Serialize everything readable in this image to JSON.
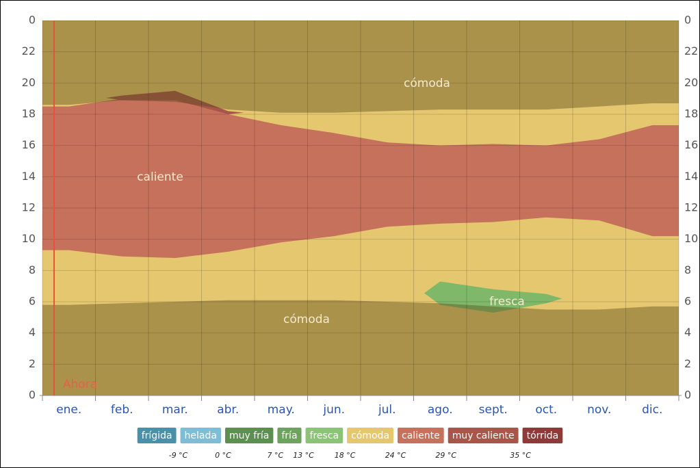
{
  "chart_data": {
    "type": "area",
    "categories": [
      "ene.",
      "feb.",
      "mar.",
      "abr.",
      "may.",
      "jun.",
      "jul.",
      "ago.",
      "sept.",
      "oct.",
      "nov.",
      "dic."
    ],
    "ylim": [
      0,
      24
    ],
    "yticks": [
      0,
      2,
      4,
      6,
      8,
      10,
      12,
      14,
      16,
      18,
      20,
      22,
      {
        "value": 24,
        "label": "0"
      }
    ],
    "background": {
      "name": "cómoda",
      "color": "#e5c76f"
    },
    "series": [
      {
        "name": "caliente",
        "color": "#c6715b",
        "lower": [
          9.3,
          8.9,
          8.8,
          9.2,
          9.8,
          10.2,
          10.8,
          11.0,
          11.1,
          11.4,
          11.2,
          10.2
        ],
        "upper": [
          18.5,
          19.0,
          18.9,
          18.0,
          17.3,
          16.8,
          16.2,
          16.0,
          16.1,
          16.0,
          16.4,
          17.3
        ]
      },
      {
        "name": "muy caliente",
        "color": "#a8564a",
        "lower": [
          null,
          18.9,
          18.9,
          18.0,
          null,
          null,
          null,
          null,
          null,
          null,
          null,
          null
        ],
        "upper": [
          null,
          19.2,
          19.5,
          18.2,
          null,
          null,
          null,
          null,
          null,
          null,
          null,
          null
        ]
      },
      {
        "name": "fresca",
        "color": "#80b86a",
        "lower": [
          null,
          null,
          null,
          null,
          null,
          null,
          null,
          5.8,
          5.3,
          5.9,
          null,
          null
        ],
        "upper": [
          null,
          null,
          null,
          null,
          null,
          null,
          null,
          7.3,
          6.8,
          6.5,
          null,
          null
        ]
      }
    ],
    "shading": [
      {
        "color": "#5a4a1a",
        "lower": [
          18.6,
          18.9,
          18.8,
          18.3,
          18.1,
          18.1,
          18.2,
          18.3,
          18.3,
          18.3,
          18.5,
          18.7
        ],
        "upper": [
          24,
          24,
          24,
          24,
          24,
          24,
          24,
          24,
          24,
          24,
          24,
          24
        ]
      },
      {
        "color": "#5a4a1a",
        "lower": [
          0,
          0,
          0,
          0,
          0,
          0,
          0,
          0,
          0,
          0,
          0,
          0
        ],
        "upper": [
          5.8,
          5.9,
          6.0,
          6.1,
          6.1,
          6.1,
          6.0,
          5.9,
          5.7,
          5.5,
          5.5,
          5.7
        ]
      }
    ],
    "annotations": [
      "cómoda",
      "caliente",
      "cómoda",
      "fresca",
      "Ahora"
    ],
    "now_x": 0.22,
    "legend": [
      {
        "label": "frígida",
        "color": "#4a90a8"
      },
      {
        "label": "helada",
        "color": "#7fbcd6"
      },
      {
        "label": "muy fría",
        "color": "#5c8f50"
      },
      {
        "label": "fría",
        "color": "#6ea35f"
      },
      {
        "label": "fresca",
        "color": "#8cc477"
      },
      {
        "label": "cómoda",
        "color": "#e5c76f"
      },
      {
        "label": "caliente",
        "color": "#c6715b"
      },
      {
        "label": "muy caliente",
        "color": "#a8564a"
      },
      {
        "label": "tórrida",
        "color": "#8e3a38"
      }
    ],
    "thresholds": [
      "-9 °C",
      "0 °C",
      "7 °C",
      "13 °C",
      "18 °C",
      "24 °C",
      "29 °C",
      "35 °C"
    ],
    "grid": true
  }
}
